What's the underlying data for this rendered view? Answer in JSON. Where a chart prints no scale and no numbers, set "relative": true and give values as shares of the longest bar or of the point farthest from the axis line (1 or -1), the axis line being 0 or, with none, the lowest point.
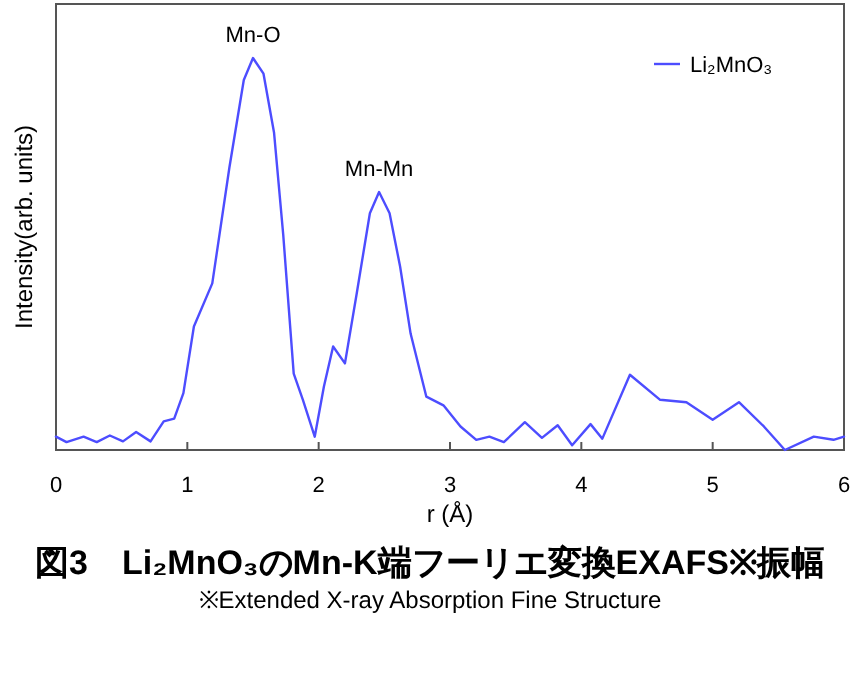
{
  "chart_data": {
    "type": "line",
    "title": "図3　Li₂MnO₃のMn-K端フーリエ変換EXAFS※振幅",
    "subtitle": "※Extended X-ray Absorption Fine Structure",
    "xlabel": "r (Å)",
    "ylabel": "Intensity(arb. units)",
    "relative": true,
    "xlim": [
      0,
      6
    ],
    "xticks": [
      0,
      1,
      2,
      3,
      4,
      5,
      6
    ],
    "tick_labels": "x",
    "legend": "top right",
    "annotations": [
      {
        "text": "Mn-O",
        "x": 1.5,
        "y": 1.0
      },
      {
        "text": "Mn-Mn",
        "x": 2.46,
        "y": 0.658
      }
    ],
    "series": [
      {
        "name": "Li₂MnO₃",
        "color": "#4d4dff",
        "x": [
          0,
          0.08,
          0.21,
          0.31,
          0.41,
          0.51,
          0.61,
          0.72,
          0.82,
          0.9,
          0.97,
          1.05,
          1.19,
          1.32,
          1.43,
          1.5,
          1.58,
          1.66,
          1.73,
          1.81,
          1.88,
          1.97,
          2.04,
          2.11,
          2.2,
          2.29,
          2.39,
          2.46,
          2.54,
          2.62,
          2.7,
          2.82,
          2.95,
          3.08,
          3.2,
          3.3,
          3.41,
          3.57,
          3.7,
          3.82,
          3.93,
          4.07,
          4.16,
          4.37,
          4.6,
          4.8,
          5.0,
          5.2,
          5.39,
          5.55,
          5.77,
          5.92,
          6.0
        ],
        "values": [
          0.034,
          0.02,
          0.034,
          0.02,
          0.037,
          0.022,
          0.046,
          0.022,
          0.073,
          0.08,
          0.145,
          0.315,
          0.425,
          0.72,
          0.944,
          1.0,
          0.96,
          0.81,
          0.55,
          0.195,
          0.128,
          0.034,
          0.162,
          0.264,
          0.221,
          0.4,
          0.604,
          0.658,
          0.604,
          0.468,
          0.297,
          0.136,
          0.114,
          0.06,
          0.026,
          0.034,
          0.02,
          0.071,
          0.031,
          0.063,
          0.012,
          0.066,
          0.029,
          0.192,
          0.128,
          0.122,
          0.077,
          0.122,
          0.06,
          0,
          0.034,
          0.026,
          0.034
        ]
      }
    ]
  }
}
